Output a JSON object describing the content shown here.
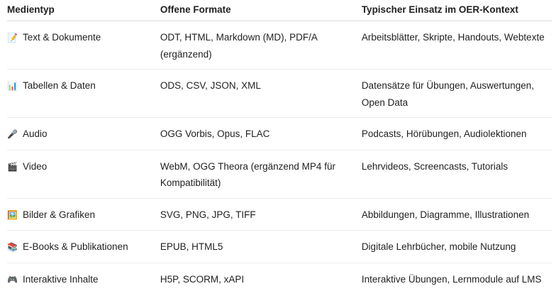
{
  "headers": [
    "Medientyp",
    "Offene Formate",
    "Typischer Einsatz im OER-Kontext"
  ],
  "rows": [
    {
      "icon": "📝",
      "icon_name": "memo-icon",
      "type": "Text & Dokumente",
      "formats": "ODT, HTML, Markdown (MD), PDF/A (ergänzend)",
      "usage": "Arbeitsblätter, Skripte, Handouts, Webtexte"
    },
    {
      "icon": "📊",
      "icon_name": "bar-chart-icon",
      "type": "Tabellen & Daten",
      "formats": "ODS, CSV, JSON, XML",
      "usage": "Datensätze für Übungen, Auswertungen, Open Data"
    },
    {
      "icon": "🎤",
      "icon_name": "microphone-icon",
      "type": "Audio",
      "formats": "OGG Vorbis, Opus, FLAC",
      "usage": "Podcasts, Hörübungen, Audiolektionen"
    },
    {
      "icon": "🎬",
      "icon_name": "clapperboard-icon",
      "type": "Video",
      "formats": "WebM, OGG Theora (ergänzend MP4 für Kompatibilität)",
      "usage": "Lehrvideos, Screencasts, Tutorials"
    },
    {
      "icon": "🖼️",
      "icon_name": "framed-picture-icon",
      "type": "Bilder & Grafiken",
      "formats": "SVG, PNG, JPG, TIFF",
      "usage": "Abbildungen, Diagramme, Illustrationen"
    },
    {
      "icon": "📚",
      "icon_name": "books-icon",
      "type": "E-Books & Publikationen",
      "formats": "EPUB, HTML5",
      "usage": "Digitale Lehrbücher, mobile Nutzung"
    },
    {
      "icon": "🎮",
      "icon_name": "game-controller-icon",
      "type": "Interaktive Inhalte",
      "formats": "H5P, SCORM, xAPI",
      "usage": "Interaktive Übungen, Lernmodule auf LMS"
    }
  ]
}
